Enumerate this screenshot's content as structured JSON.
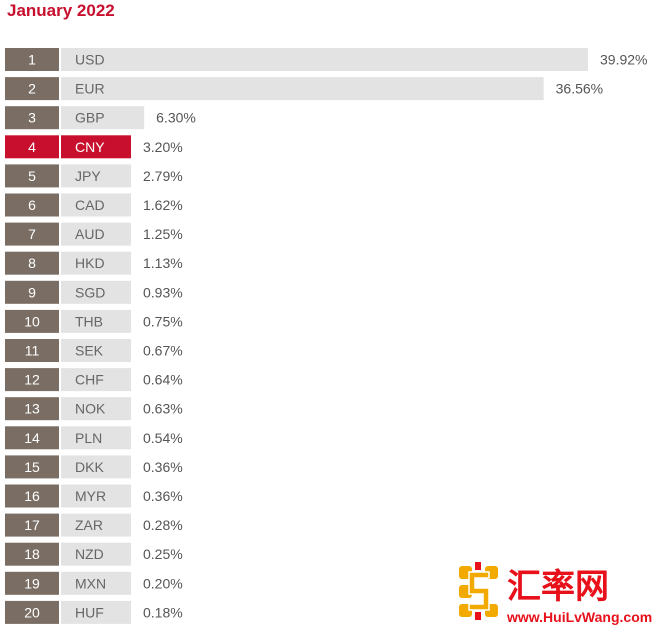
{
  "chart_data": {
    "type": "bar",
    "title": "January 2022",
    "orientation": "horizontal",
    "unit": "%",
    "highlight_color": "#c8102e",
    "bar_color": "#e3e3e3",
    "rank_color": "#7a6e64",
    "rows": [
      {
        "rank": "1",
        "currency": "USD",
        "value": 39.92,
        "label": "39.92%"
      },
      {
        "rank": "2",
        "currency": "EUR",
        "value": 36.56,
        "label": "36.56%"
      },
      {
        "rank": "3",
        "currency": "GBP",
        "value": 6.3,
        "label": "6.30%"
      },
      {
        "rank": "4",
        "currency": "CNY",
        "value": 3.2,
        "label": "3.20%",
        "highlight": true
      },
      {
        "rank": "5",
        "currency": "JPY",
        "value": 2.79,
        "label": "2.79%"
      },
      {
        "rank": "6",
        "currency": "CAD",
        "value": 1.62,
        "label": "1.62%"
      },
      {
        "rank": "7",
        "currency": "AUD",
        "value": 1.25,
        "label": "1.25%"
      },
      {
        "rank": "8",
        "currency": "HKD",
        "value": 1.13,
        "label": "1.13%"
      },
      {
        "rank": "9",
        "currency": "SGD",
        "value": 0.93,
        "label": "0.93%"
      },
      {
        "rank": "10",
        "currency": "THB",
        "value": 0.75,
        "label": "0.75%"
      },
      {
        "rank": "11",
        "currency": "SEK",
        "value": 0.67,
        "label": "0.67%"
      },
      {
        "rank": "12",
        "currency": "CHF",
        "value": 0.64,
        "label": "0.64%"
      },
      {
        "rank": "13",
        "currency": "NOK",
        "value": 0.63,
        "label": "0.63%"
      },
      {
        "rank": "14",
        "currency": "PLN",
        "value": 0.54,
        "label": "0.54%"
      },
      {
        "rank": "15",
        "currency": "DKK",
        "value": 0.36,
        "label": "0.36%"
      },
      {
        "rank": "16",
        "currency": "MYR",
        "value": 0.36,
        "label": "0.36%"
      },
      {
        "rank": "17",
        "currency": "ZAR",
        "value": 0.28,
        "label": "0.28%"
      },
      {
        "rank": "18",
        "currency": "NZD",
        "value": 0.25,
        "label": "0.25%"
      },
      {
        "rank": "19",
        "currency": "MXN",
        "value": 0.2,
        "label": "0.20%"
      },
      {
        "rank": "20",
        "currency": "HUF",
        "value": 0.18,
        "label": "0.18%"
      }
    ]
  },
  "watermark": {
    "chinese": "汇率网",
    "url": "www.HuiLvWang.com",
    "color": "#e8101a",
    "logo_color": "#f2a900"
  }
}
